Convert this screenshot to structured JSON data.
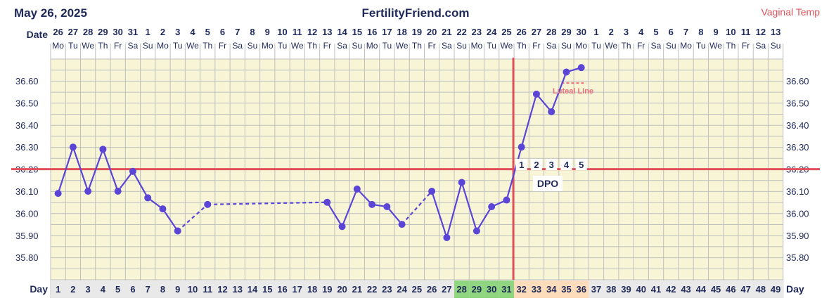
{
  "header": {
    "date": "May 26, 2025",
    "site": "FertilityFriend.com",
    "temp_type": "Vaginal Temp"
  },
  "row_labels": {
    "date": "Date",
    "day": "Day",
    "dpo": "DPO",
    "luteal": "Luteal Line"
  },
  "chart_data": {
    "type": "line",
    "y_ticks": [
      "36.60",
      "36.50",
      "36.40",
      "36.30",
      "36.20",
      "36.10",
      "36.00",
      "35.90",
      "35.80"
    ],
    "ylim": [
      35.7,
      36.7
    ],
    "dates": [
      "26",
      "27",
      "28",
      "29",
      "30",
      "31",
      "1",
      "2",
      "3",
      "4",
      "5",
      "6",
      "7",
      "8",
      "9",
      "10",
      "11",
      "12",
      "13",
      "14",
      "15",
      "16",
      "17",
      "18",
      "19",
      "20",
      "21",
      "22",
      "23",
      "24",
      "25",
      "26",
      "27",
      "28",
      "29",
      "30",
      "1",
      "2",
      "3",
      "4",
      "5",
      "6",
      "7",
      "8",
      "9",
      "10",
      "11",
      "12",
      "13"
    ],
    "weekdays": [
      "Mo",
      "Tu",
      "We",
      "Th",
      "Fr",
      "Sa",
      "Su",
      "Mo",
      "Tu",
      "We",
      "Th",
      "Fr",
      "Sa",
      "Su",
      "Mo",
      "Tu",
      "We",
      "Th",
      "Fr",
      "Sa",
      "Su",
      "Mo",
      "Tu",
      "We",
      "Th",
      "Fr",
      "Sa",
      "Su",
      "Mo",
      "Tu",
      "We",
      "Th",
      "Fr",
      "Sa",
      "Su",
      "Mo",
      "Tu",
      "We",
      "Th",
      "Fr",
      "Sa",
      "Su",
      "Mo",
      "Tu",
      "We",
      "Th",
      "Fr",
      "Sa",
      "Su"
    ],
    "cycle_days": [
      "1",
      "2",
      "3",
      "4",
      "5",
      "6",
      "7",
      "8",
      "9",
      "10",
      "11",
      "12",
      "13",
      "14",
      "15",
      "16",
      "17",
      "18",
      "19",
      "20",
      "21",
      "22",
      "23",
      "24",
      "25",
      "26",
      "27",
      "28",
      "29",
      "30",
      "31",
      "32",
      "33",
      "34",
      "35",
      "36",
      "37",
      "38",
      "39",
      "40",
      "41",
      "42",
      "43",
      "44",
      "45",
      "46",
      "47",
      "48",
      "49"
    ],
    "temps": [
      {
        "day": 1,
        "temp": 36.09
      },
      {
        "day": 2,
        "temp": 36.3
      },
      {
        "day": 3,
        "temp": 36.1
      },
      {
        "day": 4,
        "temp": 36.29
      },
      {
        "day": 5,
        "temp": 36.1
      },
      {
        "day": 6,
        "temp": 36.19
      },
      {
        "day": 7,
        "temp": 36.07
      },
      {
        "day": 8,
        "temp": 36.02
      },
      {
        "day": 9,
        "temp": 35.92
      },
      {
        "day": 11,
        "temp": 36.04
      },
      {
        "day": 19,
        "temp": 36.05
      },
      {
        "day": 20,
        "temp": 35.94
      },
      {
        "day": 21,
        "temp": 36.11
      },
      {
        "day": 22,
        "temp": 36.04
      },
      {
        "day": 23,
        "temp": 36.03
      },
      {
        "day": 24,
        "temp": 35.95
      },
      {
        "day": 26,
        "temp": 36.1
      },
      {
        "day": 27,
        "temp": 35.89
      },
      {
        "day": 28,
        "temp": 36.14
      },
      {
        "day": 29,
        "temp": 35.92
      },
      {
        "day": 30,
        "temp": 36.03
      },
      {
        "day": 31,
        "temp": 36.06
      },
      {
        "day": 32,
        "temp": 36.3
      },
      {
        "day": 33,
        "temp": 36.54
      },
      {
        "day": 34,
        "temp": 36.46
      },
      {
        "day": 35,
        "temp": 36.64
      },
      {
        "day": 36,
        "temp": 36.66
      }
    ],
    "dashed_gaps": [
      [
        9,
        11
      ],
      [
        11,
        19
      ],
      [
        24,
        26
      ]
    ],
    "coverline": 36.2,
    "ovulation_day": 31,
    "luteal_line": {
      "start_day": 35,
      "end_day": 36,
      "temp": 36.59
    },
    "dpo_labels": [
      "1",
      "2",
      "3",
      "4",
      "5"
    ],
    "dpo_start_day": 32,
    "day_highlights": {
      "fertile_days": [
        28,
        29,
        30,
        31
      ],
      "luteal_days": [
        32,
        33,
        34,
        35,
        36
      ]
    },
    "colors": {
      "plot_bg": "#f7f5d5",
      "grid": "#bfbfbf",
      "line": "#5b45d6",
      "coverline": "#e0505a",
      "ovulation": "#e0505a",
      "luteal": "#e8707a",
      "fertile_bg": "#90d680",
      "luteal_bg": "#fcdcba",
      "day_bg": "#e9e9e9",
      "text": "#1f2a5a",
      "header_red": "#e0505a"
    }
  }
}
